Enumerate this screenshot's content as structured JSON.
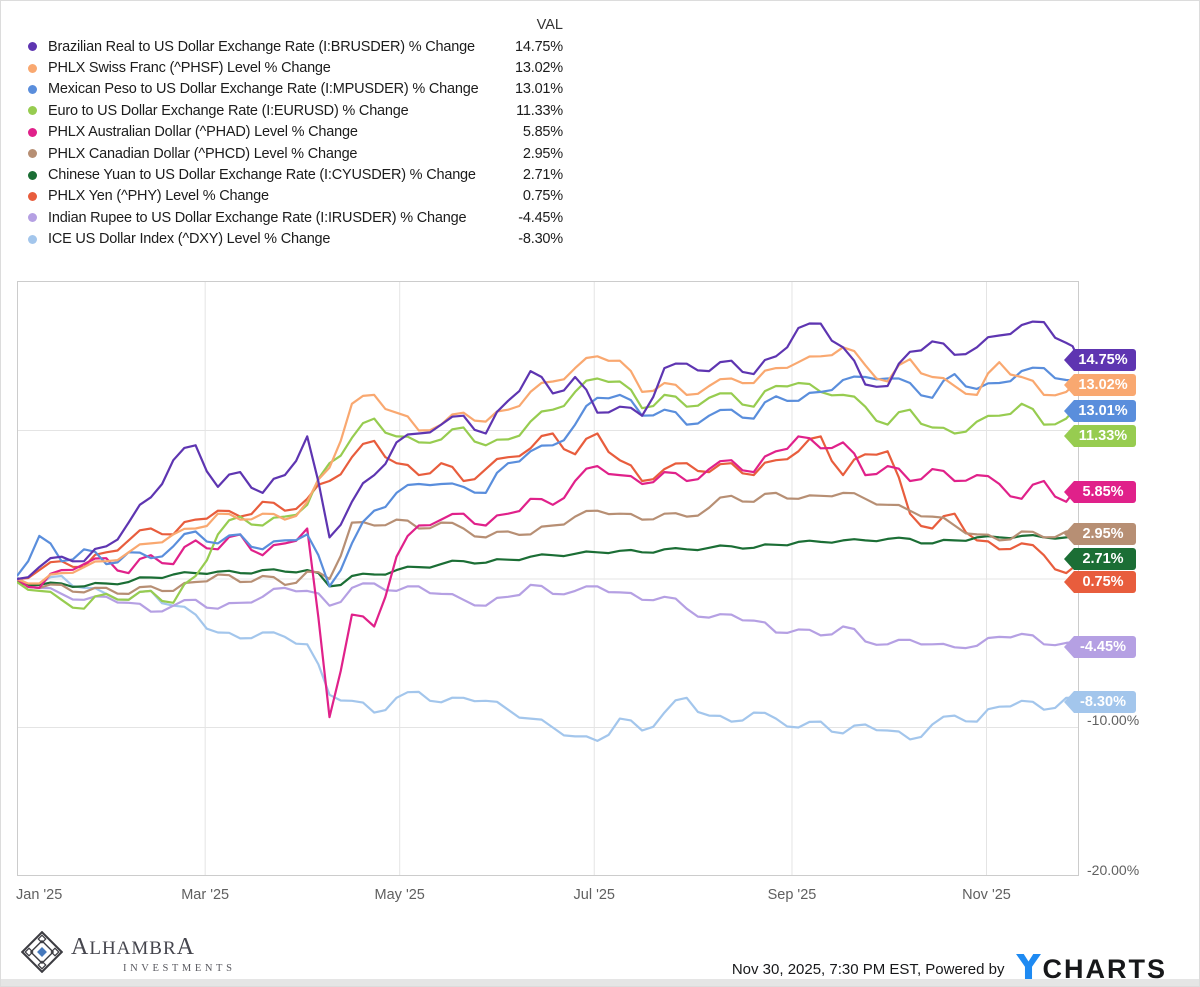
{
  "legend": {
    "val_header": "VAL",
    "items": [
      {
        "label": "Brazilian Real to US Dollar Exchange Rate (I:BRUSDER) % Change",
        "value": "14.75%",
        "color": "#5e35b1"
      },
      {
        "label": "PHLX Swiss Franc (^PHSF) Level % Change",
        "value": "13.02%",
        "color": "#f9a870"
      },
      {
        "label": "Mexican Peso to US Dollar Exchange Rate (I:MPUSDER) % Change",
        "value": "13.01%",
        "color": "#5a8edc"
      },
      {
        "label": "Euro to US Dollar Exchange Rate (I:EURUSD) % Change",
        "value": "11.33%",
        "color": "#97cc50"
      },
      {
        "label": "PHLX Australian Dollar (^PHAD) Level % Change",
        "value": "5.85%",
        "color": "#e0218a"
      },
      {
        "label": "PHLX Canadian Dollar (^PHCD) Level % Change",
        "value": "2.95%",
        "color": "#b78f74"
      },
      {
        "label": "Chinese Yuan to US Dollar Exchange Rate (I:CYUSDER) % Change",
        "value": "2.71%",
        "color": "#1b6e35"
      },
      {
        "label": "PHLX Yen (^PHY) Level % Change",
        "value": "0.75%",
        "color": "#e85d3d"
      },
      {
        "label": "Indian Rupee to US Dollar Exchange Rate (I:IRUSDER) % Change",
        "value": "-4.45%",
        "color": "#b5a0e3"
      },
      {
        "label": "ICE US Dollar Index (^DXY) Level % Change",
        "value": "-8.30%",
        "color": "#a3c6ec"
      }
    ]
  },
  "chart_data": {
    "type": "line",
    "x_axis": {
      "labels": [
        "Jan '25",
        "Mar '25",
        "May '25",
        "Jul '25",
        "Sep '25",
        "Nov '25"
      ],
      "label_days": [
        0,
        59,
        120,
        181,
        243,
        304
      ],
      "range_days": [
        0,
        333
      ]
    },
    "y_axis": {
      "unit": "%",
      "range": [
        -20,
        20
      ],
      "gridlines": [
        10,
        0,
        -10
      ],
      "visible_tick_labels": [
        "-10.00%",
        "-20.00%"
      ],
      "grid": true
    },
    "legend_position": "top-left-table",
    "days": [
      0,
      7,
      14,
      21,
      28,
      35,
      42,
      49,
      56,
      63,
      70,
      77,
      84,
      91,
      98,
      105,
      112,
      119,
      126,
      133,
      140,
      147,
      154,
      161,
      168,
      175,
      182,
      189,
      196,
      203,
      210,
      217,
      224,
      231,
      238,
      245,
      252,
      259,
      266,
      273,
      280,
      287,
      294,
      301,
      308,
      315,
      322,
      329,
      333
    ],
    "series": [
      {
        "name": "Brazilian Real to US Dollar Exchange Rate (I:BRUSDER) % Change",
        "end_label": "14.75%",
        "color": "#5e35b1",
        "values": [
          0,
          0.8,
          1.5,
          1.2,
          2.2,
          3.8,
          5.5,
          8.0,
          9.0,
          6.2,
          7.2,
          5.8,
          7.0,
          9.6,
          2.8,
          5.2,
          7.0,
          9.2,
          9.8,
          10.4,
          11.0,
          9.8,
          12.0,
          14.0,
          12.5,
          13.6,
          11.2,
          11.6,
          11.0,
          14.2,
          14.5,
          14.0,
          14.7,
          13.8,
          15.0,
          16.9,
          17.2,
          15.6,
          13.1,
          13.0,
          15.3,
          16.0,
          15.1,
          15.6,
          16.4,
          17.1,
          17.3,
          15.9,
          14.75
        ]
      },
      {
        "name": "PHLX Swiss Franc (^PHSF) Level % Change",
        "end_label": "13.02%",
        "color": "#f9a870",
        "values": [
          0,
          -0.3,
          0.4,
          0.8,
          1.2,
          1.8,
          2.4,
          3.0,
          3.4,
          4.4,
          4.0,
          4.4,
          4.0,
          5.2,
          7.5,
          11.8,
          12.4,
          11.2,
          10.0,
          10.4,
          11.2,
          10.6,
          11.4,
          12.6,
          13.3,
          14.2,
          15.0,
          14.7,
          12.6,
          13.2,
          12.4,
          13.0,
          13.5,
          13.2,
          14.2,
          14.6,
          15.0,
          15.6,
          14.4,
          13.3,
          14.8,
          13.6,
          13.0,
          12.4,
          14.6,
          13.6,
          12.4,
          12.6,
          13.02
        ]
      },
      {
        "name": "Mexican Peso to US Dollar Exchange Rate (I:MPUSDER) % Change",
        "end_label": "13.01%",
        "color": "#5a8edc",
        "values": [
          0.2,
          2.9,
          1.2,
          2.0,
          1.0,
          1.8,
          1.4,
          2.2,
          3.2,
          2.4,
          3.0,
          2.0,
          2.6,
          3.0,
          -0.5,
          2.4,
          4.6,
          5.8,
          6.4,
          6.4,
          6.2,
          5.8,
          7.8,
          8.6,
          9.0,
          10.4,
          12.2,
          12.4,
          11.0,
          11.4,
          10.4,
          11.0,
          11.4,
          10.8,
          12.3,
          12.0,
          12.6,
          13.4,
          13.6,
          13.5,
          13.2,
          12.2,
          13.8,
          12.8,
          13.2,
          14.0,
          14.2,
          13.4,
          13.01
        ]
      },
      {
        "name": "Euro to US Dollar Exchange Rate (I:EURUSD) % Change",
        "end_label": "11.33%",
        "color": "#97cc50",
        "values": [
          -0.2,
          -0.8,
          -1.4,
          -2.0,
          -1.0,
          -1.4,
          -0.8,
          -1.6,
          0.2,
          3.0,
          4.2,
          3.6,
          4.2,
          5.0,
          7.8,
          9.5,
          10.8,
          9.6,
          9.2,
          9.4,
          10.2,
          9.0,
          9.4,
          10.6,
          11.4,
          12.6,
          13.5,
          13.3,
          11.5,
          12.4,
          11.6,
          12.2,
          12.5,
          11.6,
          13.0,
          13.2,
          12.6,
          12.4,
          11.6,
          10.4,
          11.4,
          10.2,
          9.8,
          10.6,
          11.0,
          11.8,
          10.4,
          10.8,
          11.33
        ]
      },
      {
        "name": "PHLX Australian Dollar (^PHAD) Level % Change",
        "end_label": "5.85%",
        "color": "#e0218a",
        "values": [
          0,
          -0.6,
          0.6,
          1.0,
          1.4,
          0.4,
          1.6,
          1.0,
          2.6,
          2.0,
          3.0,
          1.6,
          2.4,
          3.4,
          -9.3,
          -2.4,
          -3.2,
          1.5,
          3.6,
          4.0,
          4.4,
          3.6,
          4.4,
          5.4,
          5.0,
          6.6,
          7.6,
          7.0,
          6.4,
          7.2,
          6.6,
          7.4,
          8.0,
          7.2,
          8.6,
          9.6,
          8.8,
          9.2,
          7.0,
          7.6,
          6.6,
          7.4,
          6.6,
          7.0,
          6.4,
          5.4,
          6.6,
          5.2,
          5.85
        ]
      },
      {
        "name": "PHLX Canadian Dollar (^PHCD) Level % Change",
        "end_label": "2.95%",
        "color": "#b78f74",
        "values": [
          0,
          -0.6,
          -0.4,
          -0.9,
          -0.6,
          -1.0,
          -0.5,
          -0.8,
          -0.2,
          0.3,
          -0.2,
          0.2,
          -0.4,
          0.5,
          0.0,
          3.8,
          3.6,
          4.0,
          3.4,
          3.8,
          3.4,
          2.8,
          3.2,
          3.0,
          3.6,
          4.2,
          4.6,
          4.4,
          4.0,
          4.4,
          4.2,
          4.8,
          5.6,
          5.2,
          5.8,
          5.4,
          5.6,
          5.8,
          5.4,
          5.0,
          4.6,
          4.2,
          3.6,
          3.0,
          2.6,
          3.2,
          2.8,
          3.2,
          2.95
        ]
      },
      {
        "name": "Chinese Yuan to US Dollar Exchange Rate (I:CYUSDER) % Change",
        "end_label": "2.71%",
        "color": "#1b6e35",
        "values": [
          -0.2,
          -0.4,
          -0.3,
          -0.5,
          -0.3,
          -0.2,
          0.1,
          0.3,
          0.4,
          0.5,
          0.4,
          0.6,
          0.5,
          0.6,
          -0.5,
          0.2,
          0.3,
          0.6,
          0.8,
          1.0,
          1.2,
          1.1,
          1.3,
          1.5,
          1.6,
          1.7,
          1.8,
          1.9,
          1.8,
          2.0,
          2.0,
          2.1,
          2.2,
          2.1,
          2.3,
          2.5,
          2.5,
          2.6,
          2.6,
          2.7,
          2.7,
          2.4,
          2.6,
          2.8,
          2.8,
          2.9,
          2.8,
          2.8,
          2.71
        ]
      },
      {
        "name": "PHLX Yen (^PHY) Level % Change",
        "end_label": "0.75%",
        "color": "#e85d3d",
        "values": [
          0,
          0.6,
          1.2,
          0.8,
          1.8,
          2.6,
          3.4,
          3.0,
          4.0,
          4.6,
          4.2,
          5.2,
          4.6,
          5.4,
          6.6,
          8.2,
          9.3,
          7.8,
          7.0,
          7.8,
          6.6,
          7.4,
          8.2,
          8.8,
          9.8,
          8.4,
          9.8,
          8.0,
          6.6,
          7.4,
          7.8,
          7.2,
          7.8,
          7.0,
          8.0,
          8.6,
          9.6,
          7.0,
          8.4,
          8.6,
          4.4,
          3.4,
          4.4,
          2.6,
          2.0,
          2.4,
          1.6,
          0.4,
          0.75
        ]
      },
      {
        "name": "Indian Rupee to US Dollar Exchange Rate (I:IRUSDER) % Change",
        "end_label": "-4.45%",
        "color": "#b5a0e3",
        "values": [
          0,
          -0.6,
          -1.0,
          -1.4,
          -1.2,
          -1.6,
          -2.2,
          -1.8,
          -1.4,
          -2.0,
          -1.6,
          -1.2,
          -0.6,
          -0.8,
          -1.8,
          -0.6,
          -0.3,
          -0.8,
          -0.5,
          -1.0,
          -1.4,
          -1.8,
          -1.2,
          -0.4,
          -1.0,
          -0.8,
          -0.5,
          -0.9,
          -1.4,
          -1.2,
          -2.0,
          -2.6,
          -2.4,
          -2.8,
          -3.6,
          -3.4,
          -3.8,
          -3.2,
          -4.2,
          -4.4,
          -4.1,
          -4.4,
          -4.6,
          -4.5,
          -3.9,
          -3.7,
          -4.4,
          -4.3,
          -4.45
        ]
      },
      {
        "name": "ICE US Dollar Index (^DXY) Level % Change",
        "end_label": "-8.30%",
        "color": "#a3c6ec",
        "values": [
          0.1,
          -0.4,
          0.2,
          -0.6,
          -1.0,
          -1.4,
          -0.8,
          -1.8,
          -2.4,
          -3.6,
          -4.0,
          -3.6,
          -3.9,
          -4.4,
          -7.8,
          -8.2,
          -9.0,
          -8.0,
          -7.6,
          -8.3,
          -8.0,
          -8.2,
          -8.8,
          -9.4,
          -10.0,
          -10.6,
          -10.9,
          -9.4,
          -10.2,
          -9.0,
          -8.0,
          -9.2,
          -9.6,
          -9.0,
          -9.4,
          -10.0,
          -9.6,
          -10.4,
          -9.8,
          -10.2,
          -10.8,
          -9.8,
          -9.2,
          -9.6,
          -8.6,
          -8.2,
          -8.8,
          -8.0,
          -8.3
        ]
      }
    ]
  },
  "value_tags": [
    {
      "label": "14.75%",
      "color": "#5e35b1"
    },
    {
      "label": "13.02%",
      "color": "#f9a870"
    },
    {
      "label": "13.01%",
      "color": "#5a8edc"
    },
    {
      "label": "11.33%",
      "color": "#97cc50"
    },
    {
      "label": "5.85%",
      "color": "#e0218a"
    },
    {
      "label": "2.95%",
      "color": "#b78f74"
    },
    {
      "label": "2.71%",
      "color": "#1b6e35"
    },
    {
      "label": "0.75%",
      "color": "#e85d3d"
    },
    {
      "label": "-4.45%",
      "color": "#b5a0e3"
    },
    {
      "label": "-8.30%",
      "color": "#a3c6ec"
    }
  ],
  "footer": {
    "brand_name_first": "A",
    "brand_name_inner": "LHAMBR",
    "brand_name_last": "A",
    "brand_subtitle": "INVESTMENTS",
    "timestamp": "Nov 30, 2025, 7:30 PM EST",
    "powered_by": "Powered by",
    "ycharts_charts": "CHARTS"
  }
}
